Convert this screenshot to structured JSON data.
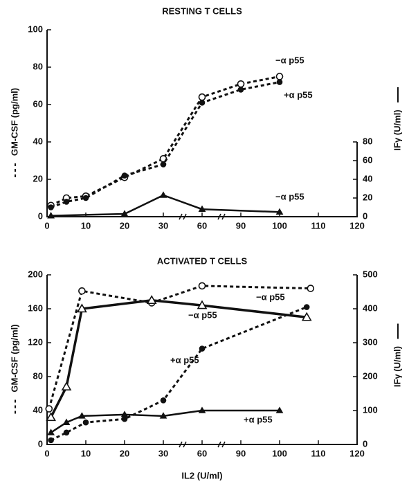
{
  "chart_data": [
    {
      "type": "line",
      "title": "RESTING T CELLS",
      "ylabel": "GM-CSF (pg/ml)",
      "y2label": "IFγ (U/ml)",
      "xlim": [
        0,
        120
      ],
      "xticks": [
        0,
        10,
        20,
        30,
        60,
        90,
        100,
        110,
        120
      ],
      "ylim": [
        0,
        100
      ],
      "yticks": [
        0,
        20,
        40,
        60,
        80,
        100
      ],
      "y2lim": [
        0,
        200
      ],
      "y2ticks": [
        0,
        20,
        40,
        60,
        80
      ],
      "series": [
        {
          "name": "−α p55",
          "color": "#111",
          "line_style": "dashed",
          "marker": "open-circle",
          "x": [
            1,
            5,
            10,
            20,
            30,
            60,
            90,
            100
          ],
          "values": [
            6,
            10,
            11,
            21,
            31,
            64,
            71,
            75
          ]
        },
        {
          "name": "+α p55",
          "color": "#111",
          "line_style": "dashed",
          "marker": "filled-circle",
          "x": [
            1,
            5,
            10,
            20,
            30,
            60,
            90,
            100
          ],
          "values": [
            5,
            8,
            10,
            22,
            28,
            61,
            68,
            72
          ]
        },
        {
          "name": "−α p55",
          "color": "#111",
          "line_style": "solid",
          "marker": "filled-triangle",
          "axis": "y2",
          "x": [
            1,
            20,
            30,
            60,
            100
          ],
          "values": [
            1,
            3,
            23,
            8,
            5
          ]
        }
      ]
    },
    {
      "type": "line",
      "title": "ACTIVATED T CELLS",
      "xlabel": "IL2 (U/ml)",
      "ylabel": "GM-CSF (pg/ml)",
      "y2label": "IFγ (U/ml)",
      "xlim": [
        0,
        120
      ],
      "xticks": [
        0,
        10,
        20,
        30,
        60,
        90,
        100,
        110,
        120
      ],
      "ylim": [
        0,
        200
      ],
      "yticks": [
        0,
        40,
        80,
        120,
        160,
        200
      ],
      "y2lim": [
        0,
        500
      ],
      "y2ticks": [
        0,
        100,
        200,
        300,
        400,
        500
      ],
      "series": [
        {
          "name": "−α p55",
          "color": "#111",
          "line_style": "dashed",
          "marker": "open-circle",
          "x": [
            0.5,
            9,
            27,
            60,
            108
          ],
          "values": [
            42,
            181,
            167,
            187,
            184
          ]
        },
        {
          "name": "−α p55",
          "color": "#111",
          "line_style": "solid-thick",
          "marker": "open-triangle",
          "axis": "y2",
          "x": [
            1,
            5,
            9,
            27,
            60,
            107
          ],
          "values": [
            80,
            170,
            400,
            425,
            410,
            375
          ]
        },
        {
          "name": "+α p55",
          "color": "#111",
          "line_style": "dashed",
          "marker": "filled-circle",
          "x": [
            1,
            5,
            10,
            20,
            30,
            60,
            107
          ],
          "values": [
            5,
            14,
            26,
            30,
            52,
            113,
            162
          ]
        },
        {
          "name": "+α p55",
          "color": "#111",
          "line_style": "solid",
          "marker": "filled-triangle",
          "axis": "y2",
          "x": [
            1,
            5,
            9,
            20,
            30,
            60,
            100
          ],
          "values": [
            35,
            65,
            84,
            88,
            84,
            100,
            100
          ]
        }
      ]
    }
  ]
}
